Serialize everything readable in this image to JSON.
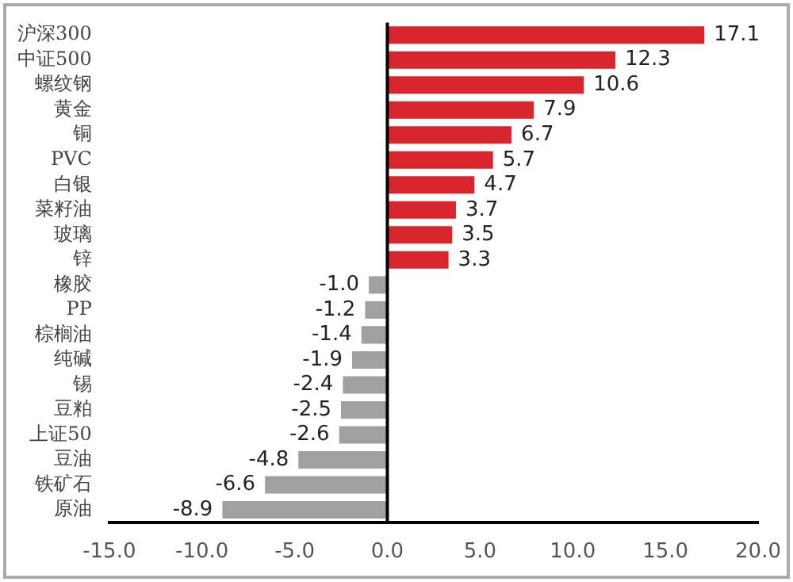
{
  "chart_data": {
    "type": "bar",
    "orientation": "horizontal",
    "categories": [
      "沪深300",
      "中证500",
      "螺纹钢",
      "黄金",
      "铜",
      "PVC",
      "白银",
      "菜籽油",
      "玻璃",
      "锌",
      "橡胶",
      "PP",
      "棕榈油",
      "纯碱",
      "锡",
      "豆粕",
      "上证50",
      "豆油",
      "铁矿石",
      "原油"
    ],
    "values": [
      17.1,
      12.3,
      10.6,
      7.9,
      6.7,
      5.7,
      4.7,
      3.7,
      3.5,
      3.3,
      -1.0,
      -1.2,
      -1.4,
      -1.9,
      -2.4,
      -2.5,
      -2.6,
      -4.8,
      -6.6,
      -8.9
    ],
    "colors": [
      "#d9252e",
      "#d9252e",
      "#d9252e",
      "#d9252e",
      "#d9252e",
      "#d9252e",
      "#d9252e",
      "#d9252e",
      "#d9252e",
      "#d9252e",
      "#a0a0a0",
      "#a0a0a0",
      "#a0a0a0",
      "#a0a0a0",
      "#a0a0a0",
      "#a0a0a0",
      "#a0a0a0",
      "#a0a0a0",
      "#a0a0a0",
      "#a0a0a0"
    ],
    "value_labels": [
      "17.1",
      "12.3",
      "10.6",
      "7.9",
      "6.7",
      "5.7",
      "4.7",
      "3.7",
      "3.5",
      "3.3",
      "-1.0",
      "-1.2",
      "-1.4",
      "-1.9",
      "-2.4",
      "-2.5",
      "-2.6",
      "-4.8",
      "-6.6",
      "-8.9"
    ],
    "xlim": [
      -15,
      20
    ],
    "xticks": [
      {
        "value": -15,
        "label": "-15.0"
      },
      {
        "value": -10,
        "label": "-10.0"
      },
      {
        "value": -5,
        "label": "-5.0"
      },
      {
        "value": 0,
        "label": "0.0"
      },
      {
        "value": 5,
        "label": "5.0"
      },
      {
        "value": 10,
        "label": "10.0"
      },
      {
        "value": 15,
        "label": "15.0"
      },
      {
        "value": 20,
        "label": "20.0"
      }
    ],
    "ref_lines": [
      {
        "axis": "x",
        "value": 0,
        "color": "#000000"
      }
    ],
    "grid": false,
    "legend": false
  }
}
